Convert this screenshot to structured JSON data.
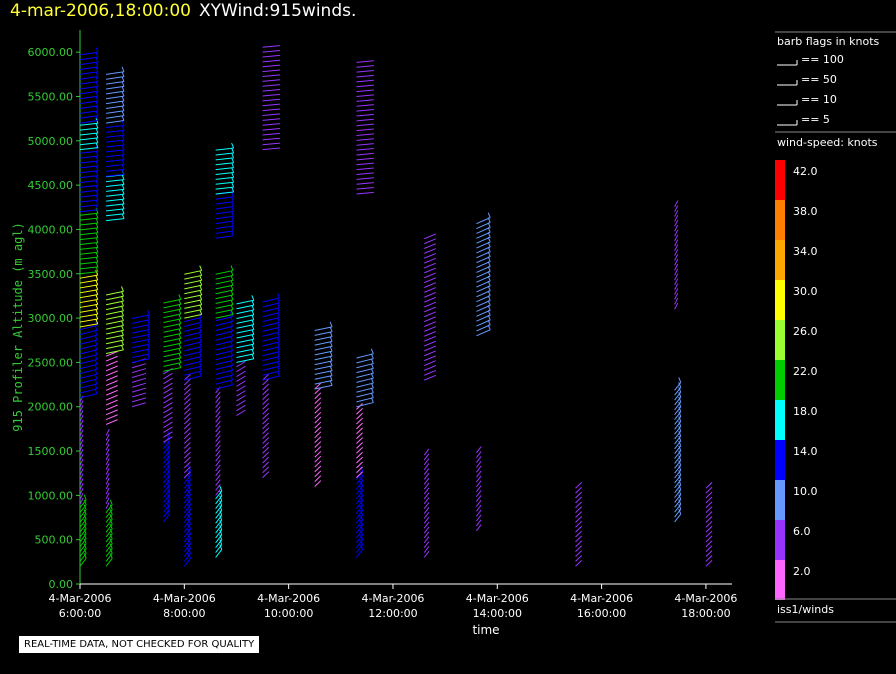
{
  "header": {
    "timestamp": "4-mar-2006,18:00:00",
    "plot_name": "XYWind:915winds."
  },
  "notice": "REAL-TIME DATA, NOT CHECKED FOR QUALITY",
  "colors": {
    "axis_y": "#33cc33",
    "timestamp": "#ffff33",
    "background": "#000000"
  },
  "legend": {
    "barb_title": "barb flags in knots",
    "barb_items": [
      "== 100",
      "== 50",
      "== 10",
      "== 5"
    ],
    "speed_title": "wind-speed: knots",
    "speed_bins": [
      {
        "label": "42.0",
        "color": "#ff0000"
      },
      {
        "label": "38.0",
        "color": "#ff7f00"
      },
      {
        "label": "34.0",
        "color": "#ffa500"
      },
      {
        "label": "30.0",
        "color": "#ffff00"
      },
      {
        "label": "26.0",
        "color": "#99ff33"
      },
      {
        "label": "22.0",
        "color": "#00cc00"
      },
      {
        "label": "18.0",
        "color": "#00ffff"
      },
      {
        "label": "14.0",
        "color": "#0000ff"
      },
      {
        "label": "10.0",
        "color": "#6699ff"
      },
      {
        "label": "6.0",
        "color": "#9933ff"
      },
      {
        "label": "2.0",
        "color": "#ff66ff"
      }
    ],
    "source": "iss1/winds"
  },
  "chart_data": {
    "type": "wind-barb",
    "xlabel": "time",
    "ylabel": "915 Profiler Altitude (m agl)",
    "xlim_hours": [
      6.0,
      18.5
    ],
    "ylim": [
      0,
      6250
    ],
    "x_ticks": [
      {
        "date": "4-Mar-2006",
        "time": "6:00:00",
        "hour": 6
      },
      {
        "date": "4-Mar-2006",
        "time": "8:00:00",
        "hour": 8
      },
      {
        "date": "4-Mar-2006",
        "time": "10:00:00",
        "hour": 10
      },
      {
        "date": "4-Mar-2006",
        "time": "12:00:00",
        "hour": 12
      },
      {
        "date": "4-Mar-2006",
        "time": "14:00:00",
        "hour": 14
      },
      {
        "date": "4-Mar-2006",
        "time": "16:00:00",
        "hour": 16
      },
      {
        "date": "4-Mar-2006",
        "time": "18:00:00",
        "hour": 18
      }
    ],
    "y_ticks": [
      "0.00",
      "500.00",
      "1000.00",
      "1500.00",
      "2000.00",
      "2500.00",
      "3000.00",
      "3500.00",
      "4000.00",
      "4500.00",
      "5000.00",
      "5500.00",
      "6000.00"
    ],
    "profiles": [
      {
        "time": 6.0,
        "segments": [
          {
            "from": 200,
            "to": 900,
            "speed": 24,
            "dir": 200
          },
          {
            "from": 900,
            "to": 2100,
            "speed": 7,
            "dir": 190
          },
          {
            "from": 2100,
            "to": 2900,
            "speed": 13,
            "dir": 250
          },
          {
            "from": 2900,
            "to": 3500,
            "speed": 29,
            "dir": 260
          },
          {
            "from": 3500,
            "to": 4200,
            "speed": 21,
            "dir": 270
          },
          {
            "from": 4200,
            "to": 4900,
            "speed": 13,
            "dir": 270
          },
          {
            "from": 4900,
            "to": 5200,
            "speed": 20,
            "dir": 270
          },
          {
            "from": 5200,
            "to": 6000,
            "speed": 13,
            "dir": 265
          }
        ]
      },
      {
        "time": 6.5,
        "segments": [
          {
            "from": 200,
            "to": 850,
            "speed": 22,
            "dir": 200
          },
          {
            "from": 850,
            "to": 1700,
            "speed": 7,
            "dir": 190
          },
          {
            "from": 1800,
            "to": 2600,
            "speed": 4,
            "dir": 220
          },
          {
            "from": 2600,
            "to": 3300,
            "speed": 25,
            "dir": 255
          },
          {
            "from": 4100,
            "to": 4600,
            "speed": 19,
            "dir": 270
          },
          {
            "from": 4600,
            "to": 5200,
            "speed": 13,
            "dir": 270
          },
          {
            "from": 5200,
            "to": 5800,
            "speed": 10,
            "dir": 265
          }
        ]
      },
      {
        "time": 7.0,
        "segments": [
          {
            "from": 2000,
            "to": 2500,
            "speed": 5,
            "dir": 230
          },
          {
            "from": 2500,
            "to": 3000,
            "speed": 13,
            "dir": 255
          }
        ]
      },
      {
        "time": 7.6,
        "segments": [
          {
            "from": 700,
            "to": 1600,
            "speed": 16,
            "dir": 200
          },
          {
            "from": 1600,
            "to": 2400,
            "speed": 6,
            "dir": 210
          },
          {
            "from": 2400,
            "to": 3200,
            "speed": 23,
            "dir": 255
          }
        ]
      },
      {
        "time": 8.0,
        "segments": [
          {
            "from": 200,
            "to": 1200,
            "speed": 14,
            "dir": 200
          },
          {
            "from": 1200,
            "to": 2300,
            "speed": 7,
            "dir": 200
          },
          {
            "from": 2300,
            "to": 3000,
            "speed": 14,
            "dir": 250
          },
          {
            "from": 3000,
            "to": 3500,
            "speed": 25,
            "dir": 255
          }
        ]
      },
      {
        "time": 8.6,
        "segments": [
          {
            "from": 300,
            "to": 1000,
            "speed": 20,
            "dir": 200
          },
          {
            "from": 1000,
            "to": 2200,
            "speed": 7,
            "dir": 195
          },
          {
            "from": 2200,
            "to": 3000,
            "speed": 14,
            "dir": 250
          },
          {
            "from": 3000,
            "to": 3500,
            "speed": 24,
            "dir": 255
          },
          {
            "from": 3900,
            "to": 4400,
            "speed": 14,
            "dir": 265
          },
          {
            "from": 4400,
            "to": 4900,
            "speed": 19,
            "dir": 270
          }
        ]
      },
      {
        "time": 9.0,
        "segments": [
          {
            "from": 1900,
            "to": 2500,
            "speed": 7,
            "dir": 210
          },
          {
            "from": 2500,
            "to": 3200,
            "speed": 20,
            "dir": 255
          }
        ]
      },
      {
        "time": 9.5,
        "segments": [
          {
            "from": 1200,
            "to": 2300,
            "speed": 5,
            "dir": 200
          },
          {
            "from": 2300,
            "to": 3200,
            "speed": 15,
            "dir": 250
          },
          {
            "from": 4900,
            "to": 6100,
            "speed": 7,
            "dir": 255
          }
        ]
      },
      {
        "time": 10.5,
        "segments": [
          {
            "from": 1100,
            "to": 2200,
            "speed": 4,
            "dir": 200
          },
          {
            "from": 2200,
            "to": 2900,
            "speed": 12,
            "dir": 255
          }
        ]
      },
      {
        "time": 11.3,
        "segments": [
          {
            "from": 300,
            "to": 1200,
            "speed": 13,
            "dir": 200
          },
          {
            "from": 1200,
            "to": 2000,
            "speed": 4,
            "dir": 200
          },
          {
            "from": 2000,
            "to": 2600,
            "speed": 10,
            "dir": 250
          },
          {
            "from": 4400,
            "to": 5900,
            "speed": 7,
            "dir": 255
          }
        ]
      },
      {
        "time": 12.6,
        "segments": [
          {
            "from": 300,
            "to": 1500,
            "speed": 7,
            "dir": 195
          },
          {
            "from": 2300,
            "to": 3900,
            "speed": 7,
            "dir": 220
          }
        ]
      },
      {
        "time": 13.6,
        "segments": [
          {
            "from": 600,
            "to": 1500,
            "speed": 7,
            "dir": 195
          },
          {
            "from": 2800,
            "to": 4100,
            "speed": 10,
            "dir": 230
          }
        ]
      },
      {
        "time": 15.5,
        "segments": [
          {
            "from": 200,
            "to": 1100,
            "speed": 7,
            "dir": 200
          }
        ]
      },
      {
        "time": 17.4,
        "segments": [
          {
            "from": 700,
            "to": 2200,
            "speed": 10,
            "dir": 200
          },
          {
            "from": 3100,
            "to": 4300,
            "speed": 6,
            "dir": 190
          }
        ]
      },
      {
        "time": 18.0,
        "segments": [
          {
            "from": 200,
            "to": 1100,
            "speed": 7,
            "dir": 200
          }
        ]
      }
    ]
  }
}
